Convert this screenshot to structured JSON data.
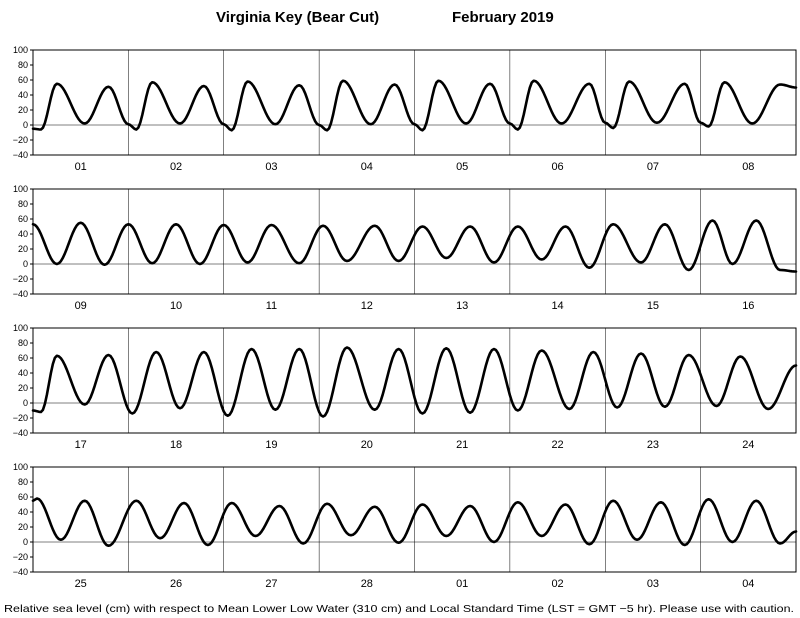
{
  "title": {
    "station": "Virginia Key (Bear Cut)",
    "period": "February   2019"
  },
  "footnote": "Relative sea level (cm) with respect to Mean Lower Low Water (310 cm) and Local Standard Time (LST = GMT −5 hr). Please use with caution.",
  "chart_data": [
    {
      "type": "line",
      "days": [
        "01",
        "02",
        "03",
        "04",
        "05",
        "06",
        "07",
        "08"
      ],
      "ylim": [
        -40,
        100
      ],
      "yticks": [
        "100",
        "80",
        "60",
        "40",
        "20",
        "0",
        "−20",
        "−40"
      ],
      "grid": "vertical day boundaries, horizontal line at 0",
      "series": [
        {
          "x_hours": [
            0,
            2,
            6,
            13,
            19,
            24,
            26,
            30,
            37,
            43,
            48,
            50,
            54,
            61,
            67,
            72,
            74,
            78,
            85,
            91,
            96,
            98,
            102,
            109,
            115,
            120,
            122,
            126,
            133,
            140,
            144,
            146,
            150,
            157,
            164,
            168,
            170,
            174,
            181,
            188,
            192
          ],
          "y": [
            -5,
            -6,
            55,
            2,
            51,
            1,
            -6,
            57,
            2,
            52,
            1,
            -7,
            58,
            1,
            53,
            0,
            -7,
            59,
            1,
            54,
            1,
            -7,
            59,
            2,
            55,
            2,
            -6,
            59,
            2,
            55,
            3,
            -4,
            58,
            3,
            55,
            3,
            -2,
            57,
            2,
            54,
            50
          ]
        }
      ]
    },
    {
      "type": "line",
      "days": [
        "09",
        "10",
        "11",
        "12",
        "13",
        "14",
        "15",
        "16"
      ],
      "ylim": [
        -40,
        100
      ],
      "yticks": [
        "100",
        "80",
        "60",
        "40",
        "20",
        "0",
        "−20",
        "−40"
      ],
      "series": [
        {
          "x_hours": [
            0,
            6,
            12,
            18,
            24,
            30,
            36,
            42,
            48,
            54,
            60,
            67,
            73,
            79,
            86,
            92,
            98,
            104,
            110,
            116,
            122,
            128,
            134,
            140,
            146,
            153,
            159,
            165,
            171,
            176,
            182,
            188,
            192
          ],
          "y": [
            53,
            0,
            55,
            -1,
            53,
            1,
            53,
            0,
            52,
            2,
            52,
            1,
            51,
            4,
            51,
            4,
            50,
            8,
            50,
            2,
            50,
            6,
            50,
            -5,
            53,
            2,
            53,
            -8,
            58,
            0,
            58,
            -8,
            -10
          ]
        }
      ]
    },
    {
      "type": "line",
      "days": [
        "17",
        "18",
        "19",
        "20",
        "21",
        "22",
        "23",
        "24"
      ],
      "ylim": [
        -40,
        100
      ],
      "yticks": [
        "100",
        "80",
        "60",
        "40",
        "20",
        "0",
        "−20",
        "−40"
      ],
      "series": [
        {
          "x_hours": [
            0,
            2,
            6,
            13,
            19,
            25,
            31,
            37,
            43,
            49,
            55,
            61,
            67,
            73,
            79,
            86,
            92,
            98,
            104,
            110,
            116,
            122,
            128,
            135,
            141,
            147,
            153,
            159,
            165,
            172,
            178,
            185,
            192
          ],
          "y": [
            -10,
            -12,
            63,
            -2,
            64,
            -14,
            68,
            -7,
            68,
            -17,
            72,
            -9,
            72,
            -18,
            74,
            -9,
            72,
            -14,
            73,
            -13,
            72,
            -10,
            70,
            -8,
            68,
            -6,
            66,
            -5,
            64,
            -4,
            62,
            -8,
            50
          ]
        }
      ]
    },
    {
      "type": "line",
      "days": [
        "25",
        "26",
        "27",
        "28",
        "01",
        "02",
        "03",
        "04"
      ],
      "ylim": [
        -40,
        100
      ],
      "yticks": [
        "100",
        "80",
        "60",
        "40",
        "20",
        "0",
        "−20",
        "−40"
      ],
      "series": [
        {
          "x_hours": [
            0,
            1,
            7,
            13,
            19,
            26,
            32,
            38,
            44,
            50,
            56,
            62,
            68,
            74,
            80,
            86,
            92,
            98,
            104,
            110,
            116,
            122,
            128,
            134,
            140,
            146,
            152,
            158,
            164,
            170,
            176,
            182,
            188,
            192
          ],
          "y": [
            55,
            58,
            3,
            55,
            -5,
            55,
            5,
            52,
            -4,
            52,
            8,
            48,
            -2,
            51,
            9,
            47,
            -1,
            50,
            8,
            48,
            0,
            53,
            8,
            50,
            -3,
            55,
            3,
            53,
            -4,
            57,
            0,
            55,
            -2,
            14
          ]
        }
      ]
    }
  ]
}
